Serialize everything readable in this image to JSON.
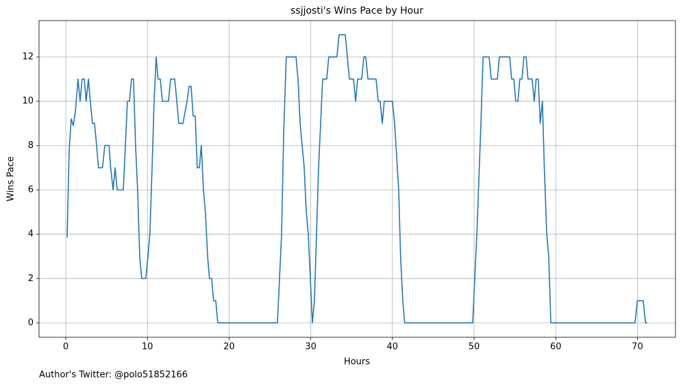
{
  "chart_data": {
    "type": "line",
    "title": "ssjjosti's Wins Pace by Hour",
    "x_label": "Hours",
    "y_label": "Wins Pace",
    "annotation": "Author's Twitter: @polo51852166",
    "color": "#1f77b4",
    "grid": true,
    "xlim": [
      -3.27,
      74.66
    ],
    "ylim": [
      -0.65,
      13.64
    ],
    "xticks": [
      0,
      10,
      20,
      30,
      40,
      50,
      60,
      70
    ],
    "yticks": [
      0,
      2,
      4,
      6,
      8,
      10,
      12
    ],
    "x": [
      0.17,
      0.42,
      0.67,
      0.92,
      1.17,
      1.5,
      1.76,
      2.0,
      2.27,
      2.5,
      2.77,
      3.0,
      3.27,
      3.52,
      3.78,
      4.0,
      4.5,
      4.78,
      5.3,
      5.5,
      5.8,
      6.04,
      6.3,
      7.05,
      7.55,
      7.8,
      8.05,
      8.3,
      8.55,
      8.8,
      9.06,
      9.3,
      9.8,
      10.07,
      10.3,
      10.57,
      10.82,
      11.07,
      11.3,
      11.58,
      11.83,
      12.58,
      12.84,
      13.34,
      13.6,
      13.84,
      14.35,
      14.6,
      14.85,
      15.1,
      15.35,
      15.6,
      15.86,
      16.1,
      16.36,
      16.6,
      16.86,
      17.1,
      17.37,
      17.6,
      17.87,
      18.1,
      18.37,
      18.62,
      25.92,
      26.43,
      26.68,
      27.0,
      28.2,
      28.44,
      28.7,
      29.2,
      29.45,
      29.7,
      29.95,
      30.2,
      30.45,
      30.96,
      31.46,
      31.96,
      32.2,
      33.2,
      33.47,
      34.23,
      34.73,
      35.23,
      35.5,
      35.74,
      36.24,
      36.5,
      36.74,
      37.0,
      38.0,
      38.26,
      38.5,
      38.76,
      39.0,
      40.0,
      40.27,
      40.77,
      41.0,
      41.27,
      41.5,
      49.83,
      50.34,
      50.84,
      51.1,
      51.85,
      52.1,
      52.85,
      53.1,
      54.36,
      54.6,
      54.87,
      55.1,
      55.37,
      55.6,
      55.87,
      56.1,
      56.38,
      56.6,
      57.1,
      57.37,
      57.6,
      57.86,
      58.1,
      58.37,
      58.6,
      58.9,
      59.14,
      59.4,
      69.7,
      70.0,
      70.7,
      71.0,
      71.2
    ],
    "values": [
      3.85,
      7.8,
      9.2,
      8.9,
      9.5,
      11,
      10,
      11,
      11,
      10,
      11,
      10,
      9,
      9,
      8,
      7,
      7,
      8,
      8,
      7,
      6,
      7,
      6,
      6,
      10,
      10,
      11,
      11,
      8,
      6,
      3,
      2,
      2,
      3,
      4,
      7,
      10,
      12,
      11,
      11,
      10,
      10,
      11,
      11,
      10,
      9,
      9,
      9.5,
      10,
      10.67,
      10.67,
      9.33,
      9.33,
      7,
      7,
      8,
      6,
      5,
      3,
      2,
      2,
      1,
      1,
      0,
      0,
      4,
      8.5,
      12,
      12,
      11,
      9,
      7,
      5,
      4,
      2,
      0,
      1,
      7,
      11,
      11,
      12,
      12,
      13,
      13,
      11,
      11,
      10,
      11,
      11,
      12,
      12,
      11,
      11,
      10,
      10,
      9,
      10,
      10,
      9,
      6,
      3,
      1,
      0,
      0,
      4,
      9,
      12,
      12,
      11,
      11,
      12,
      12,
      11,
      11,
      10,
      10,
      11,
      11,
      12,
      12,
      11,
      11,
      10,
      11,
      11,
      9,
      10,
      7,
      4,
      3,
      0,
      0,
      1,
      1,
      0,
      0
    ]
  }
}
